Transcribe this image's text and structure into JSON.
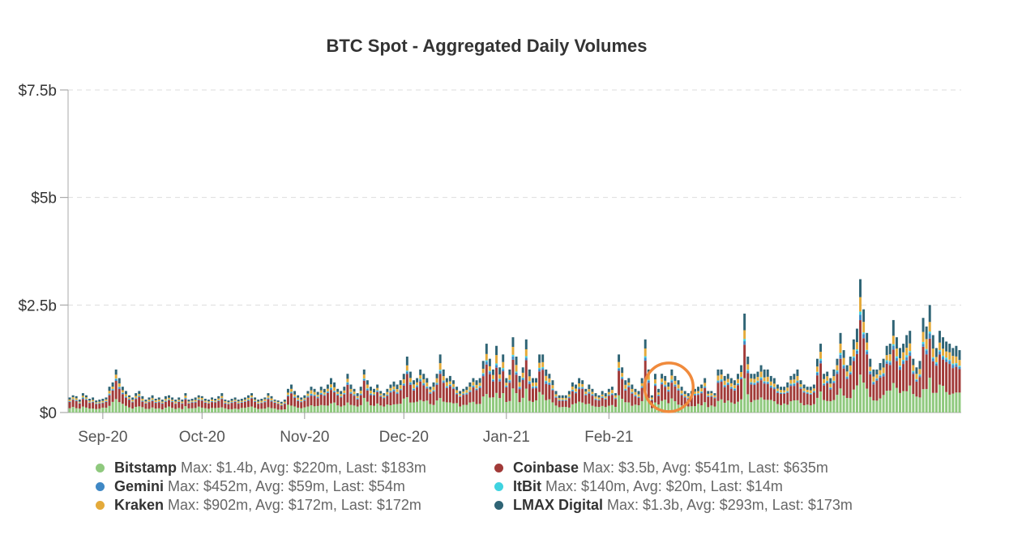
{
  "chart_data": {
    "type": "bar",
    "stacked": true,
    "title": "BTC Spot - Aggregated Daily Volumes",
    "xlabel": "",
    "ylabel": "",
    "ylim": [
      0,
      7500000000
    ],
    "y_ticks": [
      {
        "value": 0,
        "label": "$0"
      },
      {
        "value": 2500000000,
        "label": "$2.5b"
      },
      {
        "value": 5000000000,
        "label": "$5b"
      },
      {
        "value": 7500000000,
        "label": "$7.5b"
      }
    ],
    "x_ticks": [
      {
        "index": 10,
        "label": "Sep-20"
      },
      {
        "index": 40,
        "label": "Oct-20"
      },
      {
        "index": 71,
        "label": "Nov-20"
      },
      {
        "index": 101,
        "label": "Dec-20"
      },
      {
        "index": 132,
        "label": "Jan-21"
      },
      {
        "index": 163,
        "label": "Feb-21"
      }
    ],
    "grid": true,
    "legend_position": "bottom",
    "highlight": {
      "index": 181,
      "color": "#f08a3c"
    },
    "totals": [
      0.35,
      0.4,
      0.38,
      0.3,
      0.45,
      0.4,
      0.32,
      0.35,
      0.28,
      0.3,
      0.32,
      0.35,
      0.6,
      0.7,
      1.0,
      0.8,
      0.6,
      0.5,
      0.4,
      0.35,
      0.45,
      0.5,
      0.38,
      0.3,
      0.35,
      0.4,
      0.32,
      0.35,
      0.3,
      0.38,
      0.4,
      0.35,
      0.3,
      0.35,
      0.3,
      0.45,
      0.3,
      0.32,
      0.35,
      0.4,
      0.38,
      0.32,
      0.3,
      0.35,
      0.32,
      0.38,
      0.45,
      0.3,
      0.28,
      0.32,
      0.35,
      0.3,
      0.32,
      0.35,
      0.4,
      0.45,
      0.35,
      0.3,
      0.32,
      0.35,
      0.45,
      0.38,
      0.3,
      0.28,
      0.25,
      0.3,
      0.55,
      0.65,
      0.5,
      0.4,
      0.35,
      0.4,
      0.5,
      0.6,
      0.55,
      0.48,
      0.6,
      0.55,
      0.65,
      0.8,
      0.7,
      0.55,
      0.5,
      0.6,
      0.9,
      0.65,
      0.55,
      0.45,
      0.6,
      1.0,
      0.75,
      0.6,
      0.55,
      0.65,
      0.5,
      0.45,
      0.55,
      0.65,
      0.72,
      0.65,
      0.75,
      0.9,
      1.3,
      0.95,
      0.75,
      0.8,
      1.0,
      0.9,
      0.8,
      0.6,
      0.7,
      0.9,
      1.35,
      1.0,
      0.8,
      0.85,
      0.75,
      0.6,
      0.5,
      0.55,
      0.6,
      0.7,
      0.8,
      0.75,
      0.8,
      1.2,
      1.6,
      1.25,
      1.0,
      1.55,
      1.05,
      1.35,
      0.8,
      1.0,
      1.75,
      1.3,
      0.85,
      1.05,
      1.7,
      1.0,
      0.8,
      0.8,
      1.35,
      1.35,
      1.0,
      0.9,
      0.75,
      0.5,
      0.4,
      0.4,
      0.4,
      0.5,
      0.7,
      0.65,
      0.8,
      0.75,
      0.55,
      0.65,
      0.55,
      0.45,
      0.4,
      0.5,
      0.45,
      0.55,
      0.6,
      0.45,
      1.35,
      1.05,
      0.75,
      0.8,
      0.65,
      0.55,
      0.5,
      0.8,
      1.7,
      1.0,
      0.4,
      0.9,
      0.55,
      0.9,
      0.85,
      0.7,
      1.0,
      0.85,
      0.75,
      0.6,
      0.5,
      0.45,
      0.5,
      0.55,
      0.6,
      0.65,
      0.8,
      0.5,
      0.5,
      0.45,
      1.0,
      1.0,
      0.85,
      0.9,
      0.8,
      0.75,
      0.9,
      1.1,
      2.3,
      1.3,
      0.9,
      0.9,
      0.95,
      1.1,
      1.0,
      1.0,
      0.85,
      0.8,
      0.65,
      0.6,
      0.6,
      0.7,
      0.85,
      0.9,
      1.0,
      0.75,
      0.65,
      0.6,
      0.6,
      0.65,
      1.25,
      1.6,
      0.9,
      0.95,
      0.8,
      1.0,
      1.25,
      1.85,
      1.45,
      1.1,
      1.3,
      1.7,
      1.95,
      3.1,
      2.4,
      1.85,
      1.25,
      1.0,
      1.0,
      1.15,
      1.25,
      1.55,
      1.6,
      2.15,
      1.75,
      1.5,
      1.6,
      1.8,
      1.9,
      1.25,
      1.05,
      1.2,
      2.2,
      2.0,
      2.5,
      1.8,
      1.5,
      1.9,
      1.75,
      1.65,
      1.6,
      1.5,
      1.55,
      1.45
    ],
    "series": [
      {
        "name": "Bitstamp",
        "color": "#8fc97e",
        "max": "$1.4b",
        "avg": "$220m",
        "last": "$183m",
        "share": 0.3
      },
      {
        "name": "Coinbase",
        "color": "#a13a38",
        "max": "$3.5b",
        "avg": "$541m",
        "last": "$635m",
        "share": 0.4
      },
      {
        "name": "Gemini",
        "color": "#3f88c5",
        "max": "$452m",
        "avg": "$59m",
        "last": "$54m",
        "share": 0.04
      },
      {
        "name": "ItBit",
        "color": "#3fd3e0",
        "max": "$140m",
        "avg": "$20m",
        "last": "$14m",
        "share": 0.02
      },
      {
        "name": "Kraken",
        "color": "#e4aa3a",
        "max": "$902m",
        "avg": "$172m",
        "last": "$172m",
        "share": 0.1
      },
      {
        "name": "LMAX Digital",
        "color": "#2f6475",
        "max": "$1.3b",
        "avg": "$293m",
        "last": "$173m",
        "share": 0.14
      }
    ]
  },
  "legend": [
    {
      "name": "Bitstamp",
      "stats": "Max: $1.4b, Avg: $220m, Last: $183m",
      "color": "#8fc97e"
    },
    {
      "name": "Coinbase",
      "stats": "Max: $3.5b, Avg: $541m, Last: $635m",
      "color": "#a13a38"
    },
    {
      "name": "Gemini",
      "stats": "Max: $452m, Avg: $59m, Last: $54m",
      "color": "#3f88c5"
    },
    {
      "name": "ItBit",
      "stats": "Max: $140m, Avg: $20m, Last: $14m",
      "color": "#3fd3e0"
    },
    {
      "name": "Kraken",
      "stats": "Max: $902m, Avg: $172m, Last: $172m",
      "color": "#e4aa3a"
    },
    {
      "name": "LMAX Digital",
      "stats": "Max: $1.3b, Avg: $293m, Last: $173m",
      "color": "#2f6475"
    }
  ]
}
